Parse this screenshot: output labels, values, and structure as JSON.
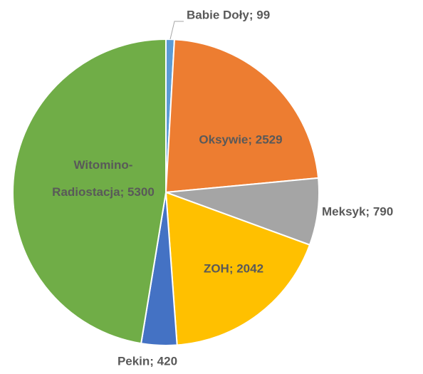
{
  "chart_data": {
    "type": "pie",
    "categories": [
      "Babie Doły",
      "Oksywie",
      "Meksyk",
      "ZOH",
      "Pekin",
      "Witomino-Radiostacja"
    ],
    "values": [
      99,
      2529,
      790,
      2042,
      420,
      5300
    ],
    "value_labels": [
      "Babie Doły; 99",
      "Oksywie; 2529",
      "Meksyk; 790",
      "ZOH; 2042",
      "Pekin; 420",
      "Witomino-Radiostacja; 5300"
    ],
    "colors": [
      "#5b9bd5",
      "#ed7d31",
      "#a5a5a5",
      "#ffc000",
      "#4472c4",
      "#70ad47"
    ]
  }
}
